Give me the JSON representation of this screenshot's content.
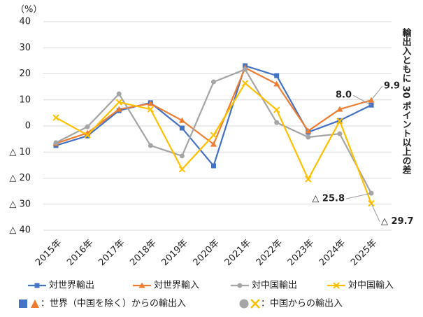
{
  "chart_data": {
    "type": "line",
    "y_unit_label": "（%）",
    "categories": [
      "2015年",
      "2016年",
      "2017年",
      "2018年",
      "2019年",
      "2020年",
      "2021年",
      "2022年",
      "2023年",
      "2024年",
      "2025年"
    ],
    "ylim": [
      -40,
      40
    ],
    "yticks": [
      40,
      30,
      20,
      10,
      0,
      {
        "value": -10,
        "label": "△ 10"
      },
      {
        "value": -20,
        "label": "△ 20"
      },
      {
        "value": -30,
        "label": "△ 30"
      },
      {
        "value": -40,
        "label": "△ 40"
      }
    ],
    "grid": true,
    "series": [
      {
        "name": "対世界輸出",
        "color": "#4472c4",
        "marker": "square",
        "values": [
          -7.5,
          -3.8,
          5.9,
          8.9,
          -0.8,
          -15.3,
          23.1,
          19.3,
          -2.4,
          2.1,
          8.0
        ],
        "value_labels": [
          null,
          null,
          null,
          null,
          null,
          null,
          null,
          null,
          null,
          null,
          "8.0"
        ]
      },
      {
        "name": "対世界輸入",
        "color": "#ed7d31",
        "marker": "triangle",
        "values": [
          -6.7,
          -2.7,
          6.4,
          8.6,
          2.1,
          -7.0,
          22.3,
          16.1,
          -1.9,
          6.4,
          9.9
        ],
        "value_labels": [
          null,
          null,
          null,
          null,
          null,
          null,
          null,
          null,
          null,
          null,
          "9.9"
        ]
      },
      {
        "name": "対中国輸出",
        "color": "#a5a5a5",
        "marker": "circle",
        "values": [
          -6.4,
          -0.3,
          12.3,
          -7.5,
          -11.5,
          16.9,
          21.7,
          1.3,
          -4.3,
          -3.0,
          -25.8
        ],
        "value_labels": [
          null,
          null,
          null,
          null,
          null,
          null,
          null,
          null,
          null,
          null,
          "△ 25.8"
        ]
      },
      {
        "name": "対中国輸入",
        "color": "#ffc000",
        "marker": "x",
        "values": [
          3.2,
          -3.5,
          9.1,
          6.4,
          -16.6,
          -3.5,
          16.4,
          6.2,
          -20.4,
          1.9,
          -29.7
        ],
        "value_labels": [
          null,
          null,
          null,
          null,
          null,
          null,
          null,
          null,
          null,
          null,
          "△ 29.7"
        ]
      }
    ],
    "annotation": "輸出入ともに 30 ポイント以上の差",
    "marker_notes": [
      "：世界（中国を除く）からの輸出入",
      "：中国からの輸出入"
    ]
  }
}
